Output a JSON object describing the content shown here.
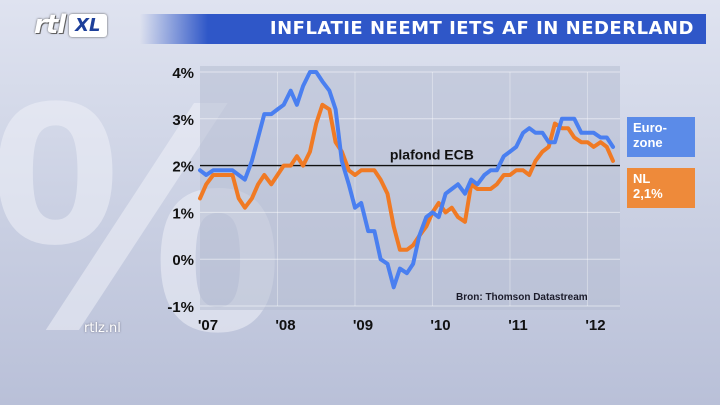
{
  "header": {
    "logo_rtl": "rtl",
    "logo_xl": "XL",
    "title": "INFLATIE NEEMT IETS AF IN NEDERLAND"
  },
  "background": {
    "watermark": "%"
  },
  "footer": {
    "site": "rtlz.nl",
    "source": "Bron: Thomson Datastream"
  },
  "legend": {
    "euro_line1": "Euro-",
    "euro_line2": "zone",
    "nl_line1": "NL",
    "nl_line2": "2,1%"
  },
  "annotation": {
    "ref_label": "plafond ECB"
  },
  "colors": {
    "euro": "#4a7ff0",
    "nl": "#f07a24",
    "title_bar": "#2f57c8",
    "ref_line": "#111111"
  },
  "chart_data": {
    "type": "line",
    "title": "INFLATIE NEEMT IETS AF IN NEDERLAND",
    "xlabel": "",
    "ylabel": "",
    "ylim": [
      -1,
      4
    ],
    "y_ticks": [
      "4%",
      "3%",
      "2%",
      "1%",
      "0%",
      "-1%"
    ],
    "x_ticks": [
      "'07",
      "'08",
      "'09",
      "'10",
      "'11",
      "'12"
    ],
    "reference_line": {
      "y": 2,
      "label": "plafond ECB"
    },
    "series": [
      {
        "name": "Euro-zone",
        "color": "#4a7ff0",
        "points": [
          [
            2007.0,
            1.9
          ],
          [
            2007.08,
            1.8
          ],
          [
            2007.17,
            1.9
          ],
          [
            2007.25,
            1.9
          ],
          [
            2007.33,
            1.9
          ],
          [
            2007.42,
            1.9
          ],
          [
            2007.5,
            1.8
          ],
          [
            2007.58,
            1.7
          ],
          [
            2007.67,
            2.1
          ],
          [
            2007.75,
            2.6
          ],
          [
            2007.83,
            3.1
          ],
          [
            2007.92,
            3.1
          ],
          [
            2008.0,
            3.2
          ],
          [
            2008.08,
            3.3
          ],
          [
            2008.17,
            3.6
          ],
          [
            2008.25,
            3.3
          ],
          [
            2008.33,
            3.7
          ],
          [
            2008.42,
            4.0
          ],
          [
            2008.5,
            4.0
          ],
          [
            2008.58,
            3.8
          ],
          [
            2008.67,
            3.6
          ],
          [
            2008.75,
            3.2
          ],
          [
            2008.83,
            2.1
          ],
          [
            2008.92,
            1.6
          ],
          [
            2009.0,
            1.1
          ],
          [
            2009.08,
            1.2
          ],
          [
            2009.17,
            0.6
          ],
          [
            2009.25,
            0.6
          ],
          [
            2009.33,
            0.0
          ],
          [
            2009.42,
            -0.1
          ],
          [
            2009.5,
            -0.6
          ],
          [
            2009.58,
            -0.2
          ],
          [
            2009.67,
            -0.3
          ],
          [
            2009.75,
            -0.1
          ],
          [
            2009.83,
            0.5
          ],
          [
            2009.92,
            0.9
          ],
          [
            2010.0,
            1.0
          ],
          [
            2010.08,
            0.9
          ],
          [
            2010.17,
            1.4
          ],
          [
            2010.25,
            1.5
          ],
          [
            2010.33,
            1.6
          ],
          [
            2010.42,
            1.4
          ],
          [
            2010.5,
            1.7
          ],
          [
            2010.58,
            1.6
          ],
          [
            2010.67,
            1.8
          ],
          [
            2010.75,
            1.9
          ],
          [
            2010.83,
            1.9
          ],
          [
            2010.92,
            2.2
          ],
          [
            2011.0,
            2.3
          ],
          [
            2011.08,
            2.4
          ],
          [
            2011.17,
            2.7
          ],
          [
            2011.25,
            2.8
          ],
          [
            2011.33,
            2.7
          ],
          [
            2011.42,
            2.7
          ],
          [
            2011.5,
            2.5
          ],
          [
            2011.58,
            2.5
          ],
          [
            2011.67,
            3.0
          ],
          [
            2011.75,
            3.0
          ],
          [
            2011.83,
            3.0
          ],
          [
            2011.92,
            2.7
          ],
          [
            2012.0,
            2.7
          ],
          [
            2012.08,
            2.7
          ],
          [
            2012.17,
            2.6
          ],
          [
            2012.25,
            2.6
          ],
          [
            2012.33,
            2.4
          ]
        ]
      },
      {
        "name": "NL",
        "color": "#f07a24",
        "points": [
          [
            2007.0,
            1.3
          ],
          [
            2007.08,
            1.6
          ],
          [
            2007.17,
            1.8
          ],
          [
            2007.25,
            1.8
          ],
          [
            2007.33,
            1.8
          ],
          [
            2007.42,
            1.8
          ],
          [
            2007.5,
            1.3
          ],
          [
            2007.58,
            1.1
          ],
          [
            2007.67,
            1.3
          ],
          [
            2007.75,
            1.6
          ],
          [
            2007.83,
            1.8
          ],
          [
            2007.92,
            1.6
          ],
          [
            2008.0,
            1.8
          ],
          [
            2008.08,
            2.0
          ],
          [
            2008.17,
            2.0
          ],
          [
            2008.25,
            2.2
          ],
          [
            2008.33,
            2.0
          ],
          [
            2008.42,
            2.3
          ],
          [
            2008.5,
            2.9
          ],
          [
            2008.58,
            3.3
          ],
          [
            2008.67,
            3.2
          ],
          [
            2008.75,
            2.5
          ],
          [
            2008.83,
            2.3
          ],
          [
            2008.92,
            1.9
          ],
          [
            2009.0,
            1.8
          ],
          [
            2009.08,
            1.9
          ],
          [
            2009.17,
            1.9
          ],
          [
            2009.25,
            1.9
          ],
          [
            2009.33,
            1.7
          ],
          [
            2009.42,
            1.4
          ],
          [
            2009.5,
            0.7
          ],
          [
            2009.58,
            0.2
          ],
          [
            2009.67,
            0.2
          ],
          [
            2009.75,
            0.3
          ],
          [
            2009.83,
            0.5
          ],
          [
            2009.92,
            0.7
          ],
          [
            2010.0,
            1.0
          ],
          [
            2010.08,
            1.2
          ],
          [
            2010.17,
            1.0
          ],
          [
            2010.25,
            1.1
          ],
          [
            2010.33,
            0.9
          ],
          [
            2010.42,
            0.8
          ],
          [
            2010.5,
            1.6
          ],
          [
            2010.58,
            1.5
          ],
          [
            2010.67,
            1.5
          ],
          [
            2010.75,
            1.5
          ],
          [
            2010.83,
            1.6
          ],
          [
            2010.92,
            1.8
          ],
          [
            2011.0,
            1.8
          ],
          [
            2011.08,
            1.9
          ],
          [
            2011.17,
            1.9
          ],
          [
            2011.25,
            1.8
          ],
          [
            2011.33,
            2.1
          ],
          [
            2011.42,
            2.3
          ],
          [
            2011.5,
            2.4
          ],
          [
            2011.58,
            2.9
          ],
          [
            2011.67,
            2.8
          ],
          [
            2011.75,
            2.8
          ],
          [
            2011.83,
            2.6
          ],
          [
            2011.92,
            2.5
          ],
          [
            2012.0,
            2.5
          ],
          [
            2012.08,
            2.4
          ],
          [
            2012.17,
            2.5
          ],
          [
            2012.25,
            2.4
          ],
          [
            2012.33,
            2.1
          ]
        ]
      }
    ]
  }
}
